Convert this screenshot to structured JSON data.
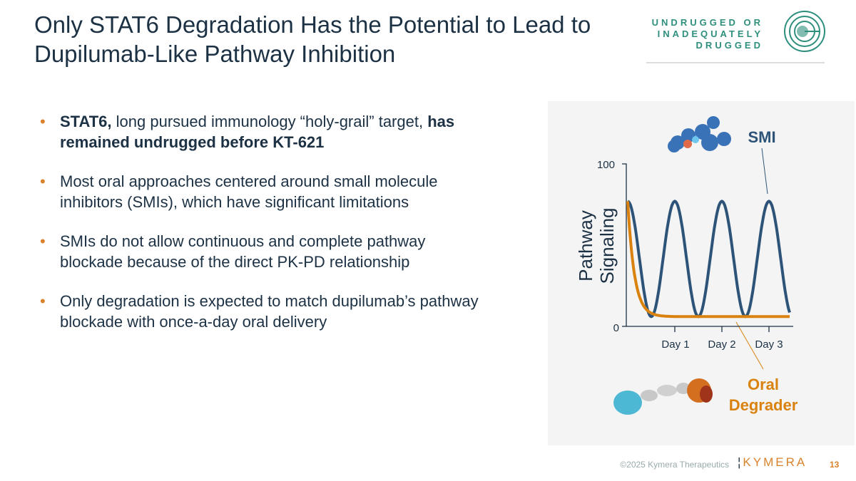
{
  "title": "Only STAT6 Degradation Has the Potential to Lead to Dupilumab-Like Pathway Inhibition",
  "badge": {
    "lines": [
      "UNDRUGGED OR",
      "INADEQUATELY",
      "DRUGGED"
    ],
    "icon": "target-dartboard-icon",
    "color": "#2e8f7c"
  },
  "bullets": [
    {
      "parts": [
        {
          "t": "STAT6,",
          "b": true
        },
        {
          "t": " long pursued immunology “holy-grail” target, ",
          "b": false
        },
        {
          "t": "has remained undrugged before KT-621",
          "b": true
        }
      ]
    },
    {
      "parts": [
        {
          "t": "Most oral approaches centered around small molecule inhibitors (SMIs), which have significant limitations",
          "b": false
        }
      ]
    },
    {
      "parts": [
        {
          "t": "SMIs do not allow continuous and complete pathway blockade because of the direct PK-PD relationship",
          "b": false
        }
      ]
    },
    {
      "parts": [
        {
          "t": "Only degradation is expected to match dupilumab’s pathway blockade with once-a-day oral delivery",
          "b": false
        }
      ]
    }
  ],
  "chart_data": {
    "type": "line",
    "ylabel": "Pathway Signaling",
    "ylim": [
      0,
      100
    ],
    "yticks": [
      "0",
      "100"
    ],
    "xticks": [
      "Day 1",
      "Day 2",
      "Day 3"
    ],
    "series": [
      {
        "name": "SMI",
        "color": "#2d5478",
        "shape": "oscillating, peaks ~77 at day 0,1,2,3, troughs ~6 between"
      },
      {
        "name": "Oral Degrader",
        "color": "#d9820f",
        "shape": "drops from ~77 to ~6 before day 1 and stays flat"
      }
    ]
  },
  "footer": {
    "copyright": "©2025 Kymera Therapeutics",
    "logo": "KYMERA",
    "page": "13"
  }
}
